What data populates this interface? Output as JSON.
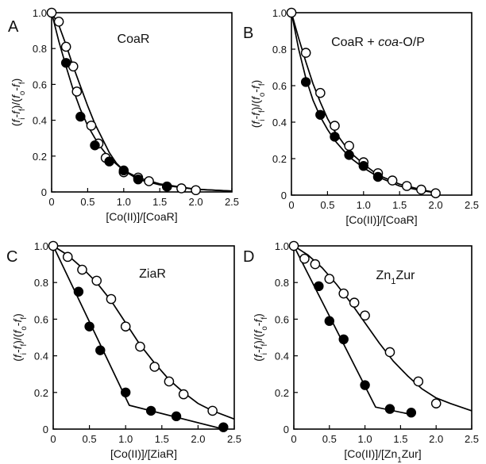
{
  "chart_data": [
    {
      "panel": "A",
      "type": "scatter",
      "title": "CoaR",
      "title_parts": [
        {
          "text": "CoaR",
          "style": "normal"
        }
      ],
      "xlabel": "[Co(II)]/[CoaR]",
      "xlabel_parts": [
        {
          "text": "[Co(II)]/[CoaR]",
          "style": "normal"
        }
      ],
      "ylabel": "(fi-ff)/(fo-ff)",
      "xlim": [
        0,
        2.5
      ],
      "ylim": [
        0,
        1.0
      ],
      "xticks": [
        "0",
        "0.5",
        "1.0",
        "1.5",
        "2.0",
        "2.5"
      ],
      "yticks": [
        "0",
        "0.2",
        "0.4",
        "0.6",
        "0.8",
        "1.0"
      ],
      "series": [
        {
          "marker": "open",
          "x": [
            0,
            0.1,
            0.2,
            0.3,
            0.35,
            0.55,
            0.65,
            0.75,
            1.0,
            1.2,
            1.35,
            1.6,
            1.8,
            2.0
          ],
          "y": [
            1.0,
            0.95,
            0.81,
            0.7,
            0.56,
            0.37,
            0.27,
            0.19,
            0.11,
            0.08,
            0.06,
            0.03,
            0.02,
            0.01
          ]
        },
        {
          "marker": "filled",
          "x": [
            0.2,
            0.4,
            0.6,
            0.8,
            1.0,
            1.2,
            1.6
          ],
          "y": [
            0.72,
            0.42,
            0.26,
            0.17,
            0.12,
            0.07,
            0.03
          ]
        }
      ],
      "fits": [
        {
          "x": [
            0,
            0.1,
            0.2,
            0.3,
            0.4,
            0.5,
            0.6,
            0.7,
            0.8,
            0.9,
            1.0,
            1.2,
            1.5,
            2.0,
            2.5
          ],
          "y": [
            1.0,
            0.93,
            0.82,
            0.7,
            0.59,
            0.48,
            0.38,
            0.3,
            0.22,
            0.16,
            0.12,
            0.07,
            0.04,
            0.015,
            0.005
          ]
        },
        {
          "x": [
            0,
            0.1,
            0.2,
            0.3,
            0.4,
            0.5,
            0.6,
            0.7,
            0.8,
            1.0,
            1.2,
            1.5,
            2.0,
            2.5
          ],
          "y": [
            1.0,
            0.84,
            0.7,
            0.57,
            0.46,
            0.37,
            0.3,
            0.24,
            0.19,
            0.12,
            0.08,
            0.045,
            0.015,
            0.005
          ]
        }
      ]
    },
    {
      "panel": "B",
      "type": "scatter",
      "title": "CoaR + coa-O/P",
      "title_parts": [
        {
          "text": "CoaR + ",
          "style": "normal"
        },
        {
          "text": "coa",
          "style": "italic"
        },
        {
          "text": "-O/P",
          "style": "normal"
        }
      ],
      "xlabel": "[Co(II)]/[CoaR]",
      "xlabel_parts": [
        {
          "text": "[Co(II)]/[CoaR]",
          "style": "normal"
        }
      ],
      "ylabel": "(fi-ff)/(fo-ff)",
      "xlim": [
        0,
        2.5
      ],
      "ylim": [
        0,
        1.0
      ],
      "xticks": [
        "0",
        "0.5",
        "1.0",
        "1.5",
        "2.0",
        "2.5"
      ],
      "yticks": [
        "0",
        "0.2",
        "0.4",
        "0.6",
        "0.8",
        "1.0"
      ],
      "series": [
        {
          "marker": "open",
          "x": [
            0,
            0.2,
            0.4,
            0.6,
            0.8,
            1.0,
            1.2,
            1.4,
            1.6,
            1.8,
            2.0
          ],
          "y": [
            1.0,
            0.78,
            0.56,
            0.38,
            0.27,
            0.18,
            0.12,
            0.08,
            0.05,
            0.03,
            0.01
          ]
        },
        {
          "marker": "filled",
          "x": [
            0.2,
            0.4,
            0.6,
            0.8,
            1.0,
            1.2
          ],
          "y": [
            0.62,
            0.44,
            0.32,
            0.22,
            0.16,
            0.1
          ]
        }
      ],
      "fits": [
        {
          "x": [
            0,
            0.1,
            0.2,
            0.3,
            0.4,
            0.5,
            0.6,
            0.8,
            1.0,
            1.2,
            1.5,
            1.8,
            2.05
          ],
          "y": [
            1.0,
            0.86,
            0.73,
            0.61,
            0.51,
            0.42,
            0.35,
            0.24,
            0.17,
            0.11,
            0.06,
            0.03,
            0.01
          ]
        },
        {
          "x": [
            0,
            0.1,
            0.2,
            0.3,
            0.4,
            0.5,
            0.6,
            0.8,
            1.0,
            1.2,
            1.5,
            1.8,
            2.05
          ],
          "y": [
            1.0,
            0.8,
            0.64,
            0.52,
            0.43,
            0.36,
            0.3,
            0.21,
            0.15,
            0.1,
            0.05,
            0.025,
            0.01
          ]
        }
      ]
    },
    {
      "panel": "C",
      "type": "scatter",
      "title": "ZiaR",
      "title_parts": [
        {
          "text": "ZiaR",
          "style": "normal"
        }
      ],
      "xlabel": "[Co(II)]/[ZiaR]",
      "xlabel_parts": [
        {
          "text": "[Co(II)]/[ZiaR]",
          "style": "normal"
        }
      ],
      "ylabel": "(fi-ff)/(fo-ff)",
      "xlim": [
        0,
        2.5
      ],
      "ylim": [
        0,
        1.0
      ],
      "xticks": [
        "0",
        "0.5",
        "1.0",
        "1.5",
        "2.0",
        "2.5"
      ],
      "yticks": [
        "0",
        "0.2",
        "0.4",
        "0.6",
        "0.8",
        "1.0"
      ],
      "series": [
        {
          "marker": "open",
          "x": [
            0,
            0.2,
            0.4,
            0.6,
            0.8,
            1.0,
            1.2,
            1.4,
            1.6,
            1.8,
            2.2
          ],
          "y": [
            1.0,
            0.94,
            0.87,
            0.81,
            0.71,
            0.56,
            0.45,
            0.34,
            0.26,
            0.19,
            0.1
          ]
        },
        {
          "marker": "filled",
          "x": [
            0.35,
            0.5,
            0.65,
            1.0,
            1.35,
            1.7,
            2.35
          ],
          "y": [
            0.75,
            0.56,
            0.43,
            0.2,
            0.1,
            0.07,
            0.01
          ]
        }
      ],
      "fits": [
        {
          "x": [
            0,
            0.2,
            0.4,
            0.6,
            0.8,
            1.0,
            1.2,
            1.4,
            1.6,
            1.8,
            2.0,
            2.2,
            2.5
          ],
          "y": [
            1.0,
            0.95,
            0.88,
            0.8,
            0.7,
            0.58,
            0.46,
            0.36,
            0.27,
            0.2,
            0.14,
            0.1,
            0.055
          ]
        },
        {
          "x": [
            0,
            1.05,
            2.35
          ],
          "y": [
            1.0,
            0.13,
            0.0
          ]
        }
      ]
    },
    {
      "panel": "D",
      "type": "scatter",
      "title": "Zn1Zur",
      "title_parts": [
        {
          "text": "Zn",
          "style": "normal"
        },
        {
          "text": "1",
          "style": "sub"
        },
        {
          "text": "Zur",
          "style": "normal"
        }
      ],
      "xlabel": "[Co(II)]/[Zn1Zur]",
      "xlabel_parts": [
        {
          "text": "[Co(II)]/[Zn",
          "style": "normal"
        },
        {
          "text": "1",
          "style": "sub"
        },
        {
          "text": "Zur]",
          "style": "normal"
        }
      ],
      "ylabel": "(fi-ff)/(fo-ff)",
      "xlim": [
        0,
        2.5
      ],
      "ylim": [
        0,
        1.0
      ],
      "xticks": [
        "0",
        "0.5",
        "1.0",
        "1.5",
        "2.0",
        "2.5"
      ],
      "yticks": [
        "0",
        "0.2",
        "0.4",
        "0.6",
        "0.8",
        "1.0"
      ],
      "series": [
        {
          "marker": "open",
          "x": [
            0,
            0.15,
            0.3,
            0.5,
            0.7,
            0.85,
            1.0,
            1.35,
            1.75,
            2.0
          ],
          "y": [
            1.0,
            0.93,
            0.9,
            0.82,
            0.74,
            0.69,
            0.62,
            0.42,
            0.26,
            0.14
          ]
        },
        {
          "marker": "filled",
          "x": [
            0.35,
            0.5,
            0.7,
            1.0,
            1.35,
            1.65
          ],
          "y": [
            0.78,
            0.59,
            0.49,
            0.24,
            0.11,
            0.09
          ]
        }
      ],
      "fits": [
        {
          "x": [
            0,
            0.2,
            0.4,
            0.6,
            0.8,
            1.0,
            1.2,
            1.4,
            1.6,
            1.8,
            2.0,
            2.2,
            2.5
          ],
          "y": [
            1.0,
            0.95,
            0.88,
            0.79,
            0.69,
            0.58,
            0.47,
            0.37,
            0.29,
            0.22,
            0.17,
            0.14,
            0.1
          ]
        },
        {
          "x": [
            0,
            1.15,
            1.65
          ],
          "y": [
            1.0,
            0.12,
            0.08
          ]
        }
      ]
    }
  ]
}
